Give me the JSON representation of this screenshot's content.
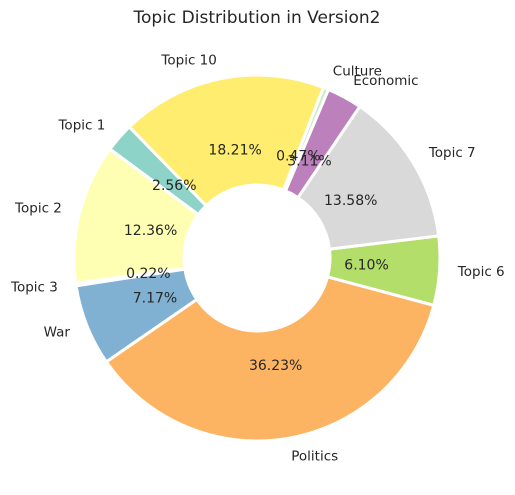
{
  "chart_data": {
    "type": "pie",
    "variant": "donut",
    "title": "Topic Distribution in Version2",
    "slices": [
      {
        "label": "Topic 6",
        "value": 6.1,
        "pct_label": "6.10%",
        "color": "#b3de69"
      },
      {
        "label": "Topic 7",
        "value": 13.58,
        "pct_label": "13.58%",
        "color": "#d9d9d9"
      },
      {
        "label": "Economic",
        "value": 3.11,
        "pct_label": "3.11%",
        "color": "#bc80bd"
      },
      {
        "label": "Culture",
        "value": 0.47,
        "pct_label": "0.47%",
        "color": "#ccebc5"
      },
      {
        "label": "Topic 10",
        "value": 18.21,
        "pct_label": "18.21%",
        "color": "#ffed6f"
      },
      {
        "label": "Topic 1",
        "value": 2.56,
        "pct_label": "2.56%",
        "color": "#8dd3c7"
      },
      {
        "label": "Topic 2",
        "value": 12.36,
        "pct_label": "12.36%",
        "color": "#ffffb3"
      },
      {
        "label": "Topic 3",
        "value": 0.22,
        "pct_label": "0.22%",
        "color": "#bebada"
      },
      {
        "label": "War",
        "value": 7.17,
        "pct_label": "7.17%",
        "color": "#80b1d3"
      },
      {
        "label": "Politics",
        "value": 36.23,
        "pct_label": "36.23%",
        "color": "#fdb462"
      }
    ],
    "start_angle_deg": -15,
    "direction": "counterclockwise",
    "legend": "none"
  }
}
